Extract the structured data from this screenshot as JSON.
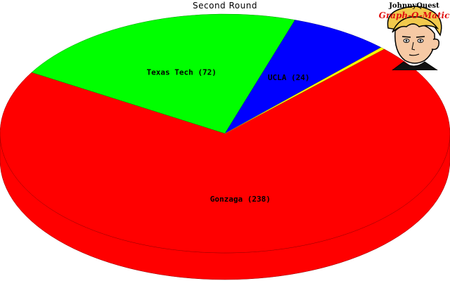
{
  "chart_data": {
    "type": "pie",
    "title": "Second Round",
    "labels": [
      "Gonzaga",
      "Texas Tech",
      "UCLA",
      ""
    ],
    "values": [
      238,
      72,
      24,
      1
    ],
    "label_texts": [
      "Gonzaga (238)",
      "Texas Tech (72)",
      "UCLA (24)",
      ""
    ],
    "colors": [
      "#ff0000",
      "#00ff00",
      "#0000ff",
      "#ffff00"
    ],
    "style": "3d"
  },
  "logo": {
    "line1": "JohnnyQuest",
    "line2": "Graph-O-Matic",
    "icon": "cartoon-boy-face-icon"
  }
}
